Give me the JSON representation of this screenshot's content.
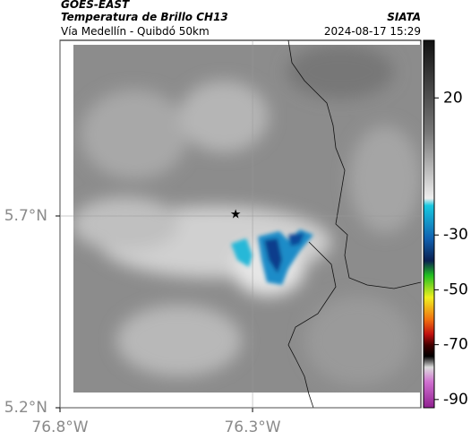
{
  "header": {
    "source": "GOES-EAST",
    "title": "Temperatura de Brillo CH13",
    "subtitle": "Vía Medellín - Quibdó 50km",
    "org": "SIATA",
    "datetime": "2024-08-17 15:29"
  },
  "map": {
    "xlim": [
      -76.8,
      -75.863
    ],
    "ylim": [
      5.2,
      6.158
    ],
    "xticks": [
      {
        "value": -76.8,
        "label": "76.8°W"
      },
      {
        "value": -76.3,
        "label": "76.3°W"
      }
    ],
    "yticks": [
      {
        "value": 5.2,
        "label": "5.2°N"
      },
      {
        "value": 5.7,
        "label": "5.7°N"
      }
    ],
    "grid": true,
    "marker": {
      "lon": -76.344,
      "lat": 5.703
    }
  },
  "colorbar": {
    "clim": [
      -93,
      41
    ],
    "ticks": [
      20,
      -30,
      -50,
      -70,
      -90
    ]
  }
}
